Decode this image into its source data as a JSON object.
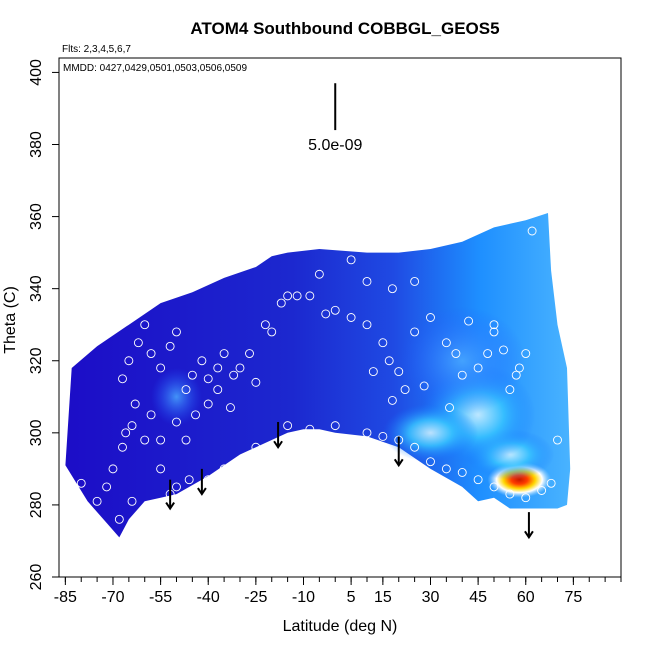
{
  "chart_data": {
    "type": "heatmap",
    "title": "ATOM4 Southbound COBBGL_GEOS5",
    "subtitle_flights": "Flts: 2,3,4,5,6,7",
    "subtitle_dates": "MMDD: 0427,0429,0501,0503,0506,0509",
    "xlabel": "Latitude (deg N)",
    "ylabel": "Theta (C)",
    "xlim": [
      -87,
      90
    ],
    "ylim": [
      260,
      404
    ],
    "x_ticks": [
      -85,
      -70,
      -55,
      -40,
      -25,
      -10,
      5,
      15,
      30,
      45,
      60,
      75
    ],
    "y_ticks": [
      260,
      280,
      300,
      320,
      340,
      360,
      380,
      400
    ],
    "scale_label": "5.0e-09",
    "top_boundary": [
      [
        -85,
        291
      ],
      [
        -83,
        318
      ],
      [
        -75,
        324
      ],
      [
        -65,
        330
      ],
      [
        -55,
        336
      ],
      [
        -45,
        339
      ],
      [
        -35,
        343
      ],
      [
        -25,
        346
      ],
      [
        -20,
        349
      ],
      [
        -15,
        350
      ],
      [
        -5,
        351
      ],
      [
        10,
        350
      ],
      [
        20,
        350
      ],
      [
        30,
        351
      ],
      [
        40,
        353
      ],
      [
        50,
        357
      ],
      [
        55,
        358
      ],
      [
        60,
        359
      ],
      [
        67,
        361
      ],
      [
        68,
        345
      ],
      [
        70,
        330
      ],
      [
        73,
        318
      ],
      [
        74,
        290
      ],
      [
        73,
        280
      ],
      [
        70,
        279
      ]
    ],
    "bottom_boundary": [
      [
        70,
        279
      ],
      [
        60,
        279
      ],
      [
        55,
        279
      ],
      [
        50,
        282
      ],
      [
        45,
        281
      ],
      [
        40,
        285
      ],
      [
        30,
        290
      ],
      [
        20,
        296
      ],
      [
        10,
        299
      ],
      [
        0,
        300
      ],
      [
        -5,
        301
      ],
      [
        -10,
        301
      ],
      [
        -15,
        300
      ],
      [
        -20,
        298
      ],
      [
        -30,
        294
      ],
      [
        -40,
        288
      ],
      [
        -50,
        283
      ],
      [
        -55,
        282
      ],
      [
        -60,
        281
      ],
      [
        -65,
        276
      ],
      [
        -68,
        271
      ],
      [
        -72,
        275
      ],
      [
        -78,
        281
      ],
      [
        -85,
        291
      ]
    ],
    "enhanced_regions": [
      {
        "x": 58,
        "y": 287,
        "rx": 10,
        "ry": 5,
        "level": 1.0
      },
      {
        "x": 55,
        "y": 294,
        "rx": 14,
        "ry": 7,
        "level": 0.55
      },
      {
        "x": 45,
        "y": 305,
        "rx": 18,
        "ry": 14,
        "level": 0.35
      },
      {
        "x": 40,
        "y": 320,
        "rx": 20,
        "ry": 15,
        "level": 0.25
      },
      {
        "x": -50,
        "y": 310,
        "rx": 8,
        "ry": 8,
        "level": 0.22
      },
      {
        "x": 30,
        "y": 300,
        "rx": 15,
        "ry": 8,
        "level": 0.3
      }
    ],
    "markers": [
      [
        -67,
        315
      ],
      [
        -65,
        320
      ],
      [
        -62,
        325
      ],
      [
        -60,
        330
      ],
      [
        -58,
        322
      ],
      [
        -55,
        318
      ],
      [
        -52,
        324
      ],
      [
        -50,
        328
      ],
      [
        -47,
        312
      ],
      [
        -45,
        316
      ],
      [
        -42,
        320
      ],
      [
        -40,
        315
      ],
      [
        -37,
        318
      ],
      [
        -35,
        322
      ],
      [
        -32,
        316
      ],
      [
        -30,
        318
      ],
      [
        -27,
        322
      ],
      [
        -25,
        314
      ],
      [
        -22,
        330
      ],
      [
        -20,
        328
      ],
      [
        -17,
        336
      ],
      [
        -12,
        338
      ],
      [
        -8,
        338
      ],
      [
        -3,
        333
      ],
      [
        0,
        334
      ],
      [
        5,
        332
      ],
      [
        10,
        330
      ],
      [
        15,
        325
      ],
      [
        17,
        320
      ],
      [
        20,
        317
      ],
      [
        25,
        328
      ],
      [
        30,
        332
      ],
      [
        35,
        325
      ],
      [
        40,
        316
      ],
      [
        45,
        318
      ],
      [
        48,
        322
      ],
      [
        50,
        328
      ],
      [
        53,
        323
      ],
      [
        55,
        312
      ],
      [
        57,
        316
      ],
      [
        60,
        322
      ],
      [
        -64,
        302
      ],
      [
        -60,
        298
      ],
      [
        -58,
        305
      ],
      [
        -55,
        298
      ],
      [
        -50,
        303
      ],
      [
        -47,
        298
      ],
      [
        -44,
        305
      ],
      [
        -40,
        308
      ],
      [
        -37,
        312
      ],
      [
        -33,
        307
      ],
      [
        -67,
        296
      ],
      [
        -66,
        300
      ],
      [
        -63,
        308
      ],
      [
        -55,
        290
      ],
      [
        -50,
        285
      ],
      [
        -48,
        281
      ],
      [
        -45,
        282
      ],
      [
        -40,
        287
      ],
      [
        -35,
        290
      ],
      [
        -30,
        292
      ],
      [
        -25,
        296
      ],
      [
        -15,
        302
      ],
      [
        -8,
        301
      ],
      [
        0,
        302
      ],
      [
        10,
        300
      ],
      [
        15,
        299
      ],
      [
        20,
        298
      ],
      [
        25,
        296
      ],
      [
        30,
        292
      ],
      [
        35,
        290
      ],
      [
        40,
        289
      ],
      [
        45,
        287
      ],
      [
        50,
        285
      ],
      [
        55,
        283
      ],
      [
        60,
        282
      ],
      [
        65,
        284
      ],
      [
        68,
        286
      ],
      [
        70,
        298
      ],
      [
        -70,
        290
      ],
      [
        -72,
        285
      ],
      [
        -75,
        281
      ],
      [
        -78,
        276
      ],
      [
        -80,
        286
      ],
      [
        -68,
        276
      ],
      [
        -64,
        281
      ],
      [
        -55,
        279
      ],
      [
        -52,
        283
      ],
      [
        -46,
        287
      ],
      [
        12,
        317
      ],
      [
        18,
        309
      ],
      [
        22,
        312
      ],
      [
        28,
        313
      ],
      [
        36,
        307
      ],
      [
        -15,
        338
      ],
      [
        -5,
        344
      ],
      [
        5,
        348
      ],
      [
        10,
        342
      ],
      [
        18,
        340
      ],
      [
        25,
        342
      ],
      [
        62,
        356
      ],
      [
        58,
        318
      ],
      [
        50,
        330
      ],
      [
        42,
        331
      ],
      [
        38,
        322
      ]
    ],
    "arrows": [
      {
        "x": -52,
        "from": 287,
        "to": 279
      },
      {
        "x": -42,
        "from": 290,
        "to": 283
      },
      {
        "x": -18,
        "from": 303,
        "to": 296
      },
      {
        "x": 20,
        "from": 299,
        "to": 291
      },
      {
        "x": 61,
        "from": 278,
        "to": 271
      }
    ],
    "scale_bar": {
      "x": 0,
      "from": 384,
      "to": 397
    }
  }
}
